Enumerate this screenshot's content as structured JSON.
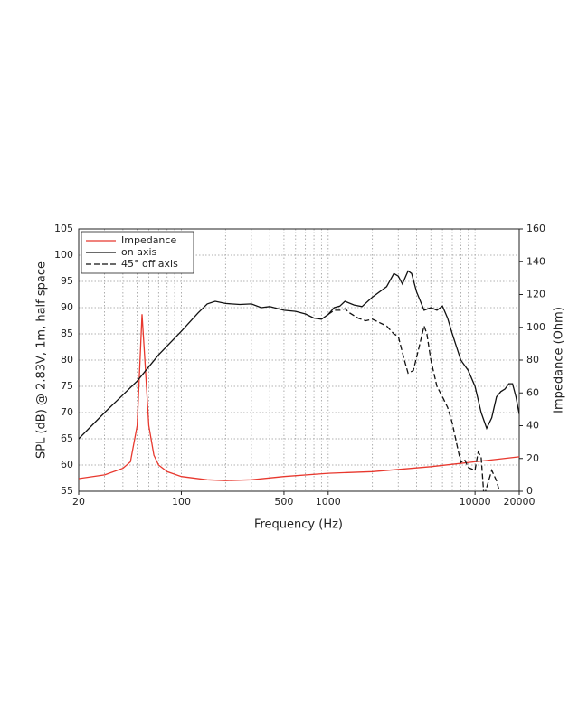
{
  "chart_data": {
    "type": "line",
    "log_x": true,
    "xlabel": "Frequency (Hz)",
    "ylabel": "SPL (dB) @ 2.83V, 1m, half space",
    "y2label": "Impedance (Ohm)",
    "xlim": [
      20,
      20000
    ],
    "ylim": [
      55,
      105
    ],
    "y2lim": [
      0,
      160
    ],
    "xticks": [
      20,
      100,
      500,
      1000,
      10000,
      20000
    ],
    "xgrid": [
      20,
      30,
      40,
      50,
      60,
      70,
      80,
      90,
      100,
      200,
      300,
      400,
      500,
      600,
      700,
      800,
      900,
      1000,
      2000,
      3000,
      4000,
      5000,
      6000,
      7000,
      8000,
      9000,
      10000,
      20000
    ],
    "yticks": [
      55,
      60,
      65,
      70,
      75,
      80,
      85,
      90,
      95,
      100,
      105
    ],
    "y2ticks": [
      0,
      20,
      40,
      60,
      80,
      100,
      120,
      140,
      160
    ],
    "grid": true,
    "legend": "upper left",
    "series": [
      {
        "name": "Impedance",
        "color": "#e8382e",
        "style": "solid",
        "axis": "y2",
        "x": [
          20,
          30,
          40,
          45,
          50,
          52,
          54,
          56,
          60,
          65,
          70,
          80,
          100,
          150,
          200,
          300,
          500,
          1000,
          2000,
          5000,
          10000,
          20000
        ],
        "values": [
          7.7,
          10,
          14,
          18,
          40,
          75,
          108,
          85,
          40,
          22,
          16,
          12,
          9,
          7,
          6.5,
          7,
          9,
          11,
          12,
          15,
          18,
          21
        ]
      },
      {
        "name": "on axis",
        "color": "#111111",
        "style": "solid",
        "x": [
          20,
          30,
          50,
          70,
          100,
          130,
          150,
          170,
          200,
          250,
          300,
          350,
          400,
          500,
          600,
          700,
          800,
          900,
          1000,
          1100,
          1200,
          1300,
          1500,
          1700,
          2000,
          2500,
          2800,
          3000,
          3200,
          3500,
          3700,
          4000,
          4500,
          5000,
          5500,
          6000,
          6500,
          7000,
          8000,
          9000,
          10000,
          11000,
          12000,
          13000,
          14000,
          15000,
          16000,
          17000,
          18000,
          19000,
          20000
        ],
        "values": [
          65,
          70,
          76,
          81,
          85.5,
          89,
          90.7,
          91.2,
          90.8,
          90.6,
          90.7,
          90,
          90.2,
          89.5,
          89.3,
          88.8,
          88,
          87.8,
          88.7,
          90,
          90.3,
          91.2,
          90.5,
          90.2,
          92,
          94,
          96.5,
          96,
          94.5,
          97,
          96.5,
          93,
          89.5,
          90,
          89.5,
          90.3,
          88,
          85,
          80,
          78,
          75,
          70,
          67,
          69,
          73,
          74,
          74.5,
          75.5,
          75.5,
          73,
          69.7
        ]
      },
      {
        "name": "45° off axis",
        "color": "#111111",
        "style": "dashed",
        "x": [
          1000,
          1100,
          1200,
          1300,
          1400,
          1600,
          1800,
          2000,
          2500,
          2800,
          3000,
          3300,
          3500,
          3800,
          4200,
          4500,
          4700,
          5000,
          5500,
          6000,
          6500,
          7000,
          7500,
          8000,
          8500,
          9000,
          10000,
          10500,
          11000,
          11500,
          13000,
          14000,
          15000
        ],
        "values": [
          88.7,
          89.5,
          89.5,
          89.8,
          89,
          88,
          87.5,
          87.8,
          86.5,
          85,
          84.5,
          80,
          77.5,
          78,
          83,
          86.5,
          85,
          80,
          75,
          73,
          71,
          68,
          64,
          60.5,
          61,
          59.5,
          59,
          62.5,
          61.5,
          54,
          59,
          57,
          54
        ]
      }
    ]
  }
}
